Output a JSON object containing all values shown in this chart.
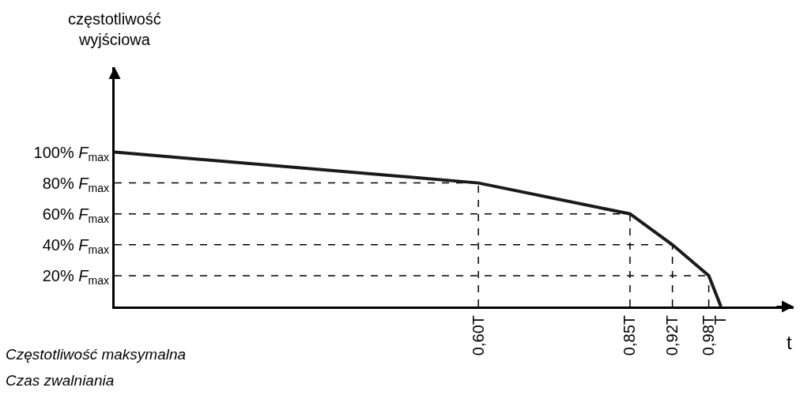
{
  "chart_data": {
    "type": "line",
    "ylabel": "częstotliwość\nwyjściowa",
    "xlabel": "t",
    "x": [
      0,
      0.6,
      0.85,
      0.92,
      0.98,
      1
    ],
    "series": [
      {
        "color": "#1a1a1a",
        "values": [
          100,
          80,
          60,
          40,
          20,
          0
        ]
      }
    ],
    "xlim": [
      0,
      1.12
    ],
    "ylim": [
      0,
      155
    ],
    "xticks": [
      {
        "value": 0.6,
        "label": "0,60T"
      },
      {
        "value": 0.85,
        "label": "0,85T"
      },
      {
        "value": 0.92,
        "label": "0,92T"
      },
      {
        "value": 0.98,
        "label": "0,98T"
      },
      {
        "value": 1,
        "label": "T"
      }
    ],
    "yticks": [
      {
        "value": 20,
        "label": "20% F$_{max}$"
      },
      {
        "value": 40,
        "label": "40% F$_{max}$"
      },
      {
        "value": 60,
        "label": "60% F$_{max}$"
      },
      {
        "value": 80,
        "label": "80% F$_{max}$"
      },
      {
        "value": 100,
        "label": "100% F$_{max}$"
      }
    ],
    "ref_lines": [
      {
        "axis": "x",
        "value": 0.6,
        "line_style": "dashed",
        "color": "#000000"
      },
      {
        "axis": "x",
        "value": 0.85,
        "line_style": "dashed",
        "color": "#000000"
      },
      {
        "axis": "x",
        "value": 0.92,
        "line_style": "dashed",
        "color": "#000000"
      },
      {
        "axis": "x",
        "value": 0.98,
        "line_style": "dashed",
        "color": "#000000"
      },
      {
        "axis": "y",
        "value": 20,
        "line_style": "dashed",
        "color": "#000000"
      },
      {
        "axis": "y",
        "value": 40,
        "line_style": "dashed",
        "color": "#000000"
      },
      {
        "axis": "y",
        "value": 60,
        "line_style": "dashed",
        "color": "#000000"
      },
      {
        "axis": "y",
        "value": 80,
        "line_style": "dashed",
        "color": "#000000"
      }
    ],
    "marker": "none",
    "line_style": "solid",
    "annotations": [
      "Częstotliwość maksymalna",
      "Czas zwalniania"
    ]
  }
}
